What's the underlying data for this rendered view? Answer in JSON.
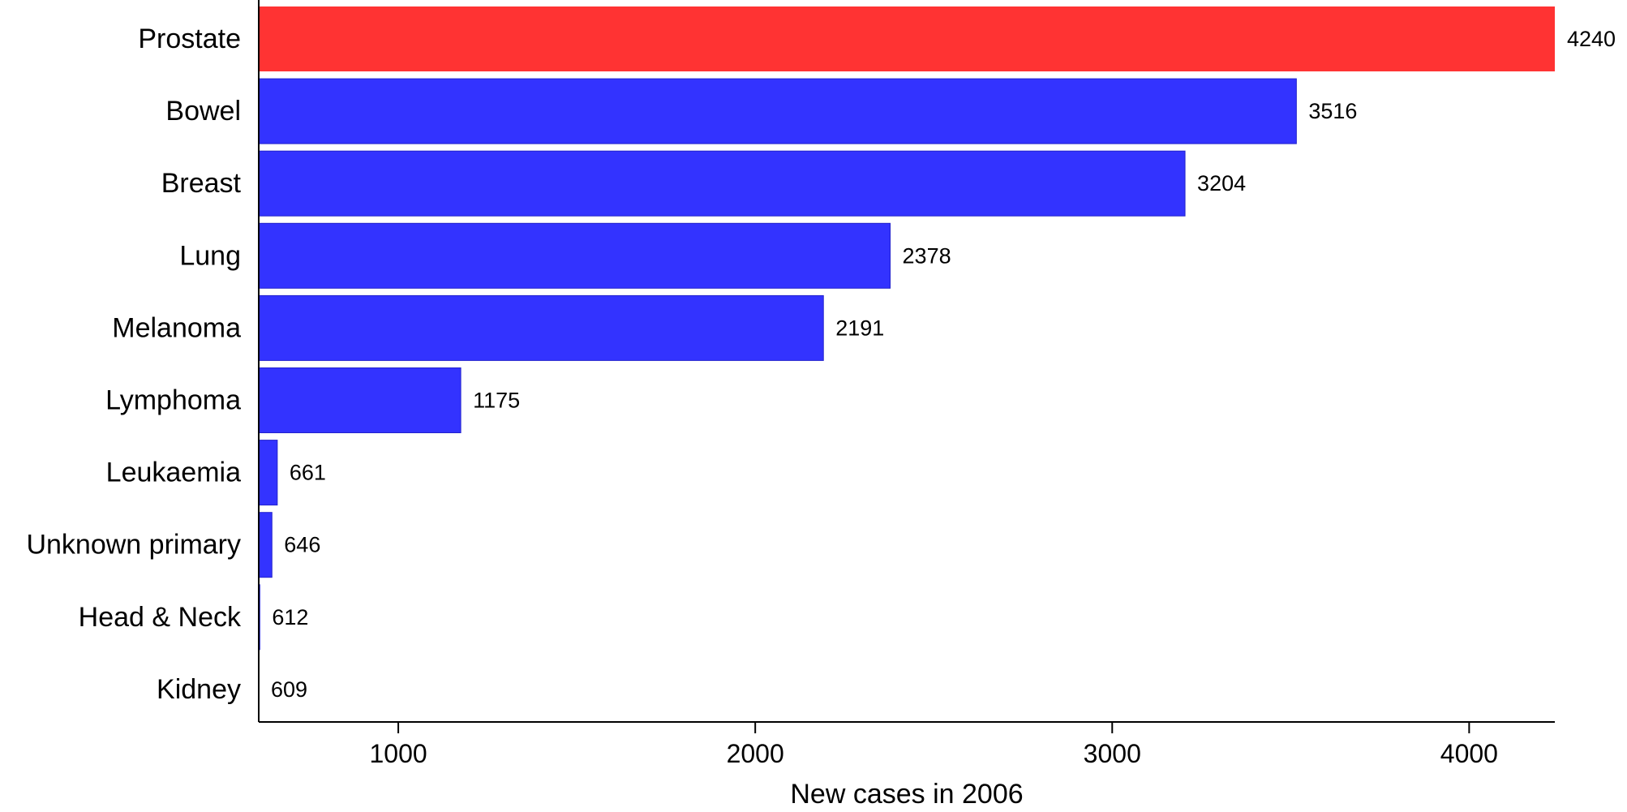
{
  "chart_data": {
    "type": "bar",
    "orientation": "horizontal",
    "title": "",
    "xlabel": "New cases in 2006",
    "ylabel": "",
    "categories": [
      "Prostate",
      "Bowel",
      "Breast",
      "Lung",
      "Melanoma",
      "Lymphoma",
      "Leukaemia",
      "Unknown primary",
      "Head & Neck",
      "Kidney"
    ],
    "values": [
      4240,
      3516,
      3204,
      2378,
      2191,
      1175,
      661,
      646,
      612,
      609
    ],
    "value_labels": [
      "4240",
      "3516",
      "3204",
      "2378",
      "2191",
      "1175",
      "661",
      "646",
      "612",
      "609"
    ],
    "xticks": [
      1000,
      2000,
      3000,
      4000
    ],
    "xtick_labels": [
      "1000",
      "2000",
      "3000",
      "4000"
    ],
    "xlim": [
      609,
      4240
    ],
    "grid": false,
    "legend": "none",
    "colors": {
      "highlight": "#ff3333",
      "bar": "#3333ff",
      "bar_edge": "#2222cc",
      "axis": "#000000"
    },
    "highlight_index": 0
  }
}
